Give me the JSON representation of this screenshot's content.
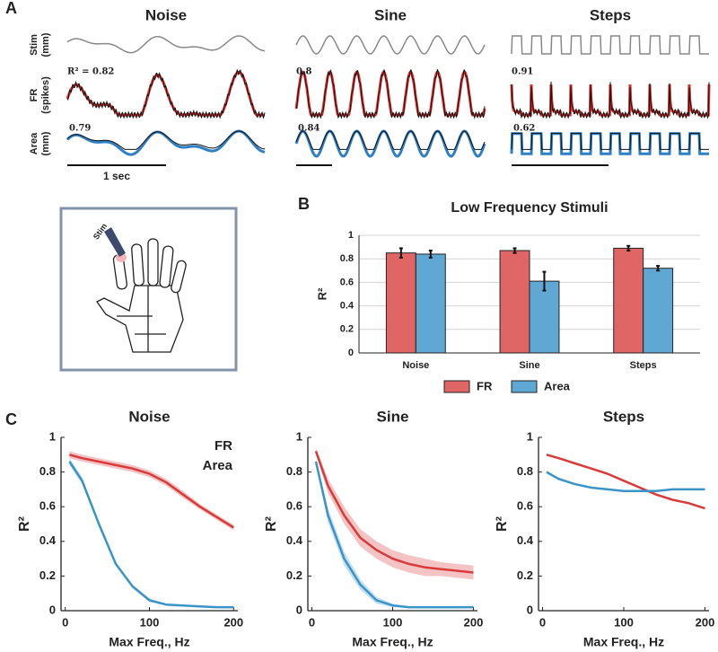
{
  "panel_labels": [
    "A",
    "B",
    "C"
  ],
  "traces": {
    "titles": [
      "Noise",
      "Sine",
      "Steps"
    ],
    "row_labels": [
      [
        "Stim",
        "(mm)"
      ],
      [
        "FR",
        "(spikes)"
      ],
      [
        "Area",
        "(mm)"
      ]
    ],
    "fr_r2": [
      "R² = 0.82",
      "0.8",
      "0.91"
    ],
    "area_r2": [
      "0.79",
      "0.84",
      "0.62"
    ],
    "scale_bar": "1 sec",
    "stim_label": "Stim"
  },
  "chart_data": [
    {
      "type": "bar",
      "title": "Low Frequency Stimuli",
      "ylabel": "R²",
      "categories": [
        "Noise",
        "Sine",
        "Steps"
      ],
      "series": [
        {
          "name": "FR",
          "color": "#e06666",
          "values": [
            0.85,
            0.87,
            0.89
          ],
          "errors": [
            0.04,
            0.02,
            0.02
          ]
        },
        {
          "name": "Area",
          "color": "#5fa8d3",
          "values": [
            0.84,
            0.61,
            0.72
          ],
          "errors": [
            0.03,
            0.08,
            0.02
          ]
        }
      ],
      "ylim": [
        0,
        1
      ],
      "yticks": [
        0,
        0.2,
        0.4,
        0.6,
        0.8,
        1
      ],
      "grid": true,
      "legend": "bottom"
    },
    {
      "type": "line",
      "title": "Noise",
      "xlabel": "Max Freq., Hz",
      "ylabel": "R²",
      "x": [
        5,
        20,
        40,
        60,
        80,
        100,
        120,
        140,
        160,
        180,
        200
      ],
      "series": [
        {
          "name": "FR",
          "color": "#d93a3a",
          "values": [
            0.9,
            0.88,
            0.86,
            0.84,
            0.82,
            0.79,
            0.74,
            0.67,
            0.6,
            0.54,
            0.48
          ],
          "spread": [
            0.02,
            0.02,
            0.02,
            0.02,
            0.02,
            0.02,
            0.02,
            0.02,
            0.015,
            0.015,
            0.015
          ]
        },
        {
          "name": "Area",
          "color": "#3a94c8",
          "values": [
            0.86,
            0.75,
            0.5,
            0.27,
            0.14,
            0.06,
            0.035,
            0.03,
            0.025,
            0.02,
            0.02
          ],
          "spread": [
            0.02,
            0.02,
            0.015,
            0.01,
            0.01,
            0.01,
            0.005,
            0.005,
            0.005,
            0.005,
            0.005
          ]
        }
      ],
      "xlim": [
        -5,
        205
      ],
      "xticks": [
        0,
        100,
        200
      ],
      "ylim": [
        0,
        1
      ],
      "yticks": [
        0,
        0.2,
        0.4,
        0.6,
        0.8,
        1
      ],
      "legend": "upper right"
    },
    {
      "type": "line",
      "title": "Sine",
      "xlabel": "Max Freq., Hz",
      "ylabel": "R²",
      "x": [
        5,
        20,
        40,
        60,
        80,
        100,
        120,
        140,
        160,
        180,
        200
      ],
      "series": [
        {
          "color": "#d93a3a",
          "values": [
            0.92,
            0.72,
            0.55,
            0.42,
            0.35,
            0.3,
            0.27,
            0.25,
            0.24,
            0.23,
            0.22
          ],
          "spread": [
            0.02,
            0.04,
            0.05,
            0.05,
            0.05,
            0.05,
            0.05,
            0.05,
            0.04,
            0.04,
            0.04
          ]
        },
        {
          "color": "#3a94c8",
          "values": [
            0.86,
            0.55,
            0.3,
            0.15,
            0.06,
            0.03,
            0.02,
            0.02,
            0.02,
            0.02,
            0.02
          ],
          "spread": [
            0.02,
            0.04,
            0.04,
            0.03,
            0.02,
            0.01,
            0.005,
            0.005,
            0.005,
            0.005,
            0.005
          ]
        }
      ],
      "xlim": [
        -5,
        205
      ],
      "xticks": [
        0,
        100,
        200
      ],
      "ylim": [
        0,
        1
      ],
      "yticks": [
        0,
        0.2,
        0.4,
        0.6,
        0.8,
        1
      ]
    },
    {
      "type": "line",
      "title": "Steps",
      "xlabel": "Max Freq., Hz",
      "ylabel": "R²",
      "x": [
        5,
        20,
        40,
        60,
        80,
        100,
        120,
        140,
        160,
        180,
        200
      ],
      "series": [
        {
          "color": "#d93a3a",
          "values": [
            0.9,
            0.88,
            0.85,
            0.82,
            0.79,
            0.75,
            0.71,
            0.67,
            0.64,
            0.62,
            0.59
          ],
          "spread": [
            0.005,
            0.005,
            0.005,
            0.005,
            0.005,
            0.005,
            0.005,
            0.005,
            0.005,
            0.005,
            0.005
          ]
        },
        {
          "color": "#3a94c8",
          "values": [
            0.8,
            0.76,
            0.73,
            0.71,
            0.7,
            0.69,
            0.69,
            0.69,
            0.7,
            0.7,
            0.7
          ],
          "spread": [
            0.005,
            0.005,
            0.005,
            0.005,
            0.005,
            0.005,
            0.005,
            0.005,
            0.005,
            0.005,
            0.005
          ]
        }
      ],
      "xlim": [
        -5,
        205
      ],
      "xticks": [
        0,
        100,
        200
      ],
      "ylim": [
        0,
        1
      ],
      "yticks": [
        0,
        0.2,
        0.4,
        0.6,
        0.8,
        1
      ]
    }
  ]
}
